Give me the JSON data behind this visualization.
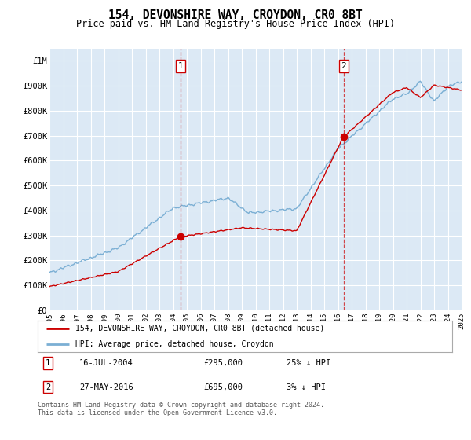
{
  "title": "154, DEVONSHIRE WAY, CROYDON, CR0 8BT",
  "subtitle": "Price paid vs. HM Land Registry's House Price Index (HPI)",
  "yticks": [
    0,
    100000,
    200000,
    300000,
    400000,
    500000,
    600000,
    700000,
    800000,
    900000,
    1000000
  ],
  "ytick_labels": [
    "£0",
    "£100K",
    "£200K",
    "£300K",
    "£400K",
    "£500K",
    "£600K",
    "£700K",
    "£800K",
    "£900K",
    "£1M"
  ],
  "xmin": 1995,
  "xmax": 2025,
  "xticks": [
    1995,
    1996,
    1997,
    1998,
    1999,
    2000,
    2001,
    2002,
    2003,
    2004,
    2005,
    2006,
    2007,
    2008,
    2009,
    2010,
    2011,
    2012,
    2013,
    2014,
    2015,
    2016,
    2017,
    2018,
    2019,
    2020,
    2021,
    2022,
    2023,
    2024,
    2025
  ],
  "plot_bg_color": "#dce9f5",
  "grid_color": "#ffffff",
  "hpi_color": "#7bafd4",
  "price_color": "#cc0000",
  "sale1_x": 2004.54,
  "sale1_y": 295000,
  "sale2_x": 2016.41,
  "sale2_y": 695000,
  "legend_line1": "154, DEVONSHIRE WAY, CROYDON, CR0 8BT (detached house)",
  "legend_line2": "HPI: Average price, detached house, Croydon",
  "note1_label": "1",
  "note1_date": "16-JUL-2004",
  "note1_price": "£295,000",
  "note1_hpi": "25% ↓ HPI",
  "note2_label": "2",
  "note2_date": "27-MAY-2016",
  "note2_price": "£695,000",
  "note2_hpi": "3% ↓ HPI",
  "footer": "Contains HM Land Registry data © Crown copyright and database right 2024.\nThis data is licensed under the Open Government Licence v3.0."
}
